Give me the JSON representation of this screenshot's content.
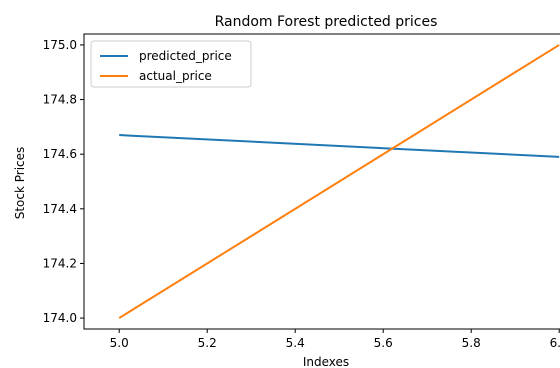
{
  "chart_data": {
    "type": "line",
    "title": "Random Forest predicted prices",
    "xlabel": "Indexes",
    "ylabel": "Stock Prices",
    "xlim": [
      4.92,
      6.02
    ],
    "ylim": [
      173.96,
      175.04
    ],
    "xticks": [
      5.0,
      5.2,
      5.4,
      5.6,
      5.8,
      6.0
    ],
    "xtick_labels": [
      "5.0",
      "5.2",
      "5.4",
      "5.6",
      "5.8",
      "6.0"
    ],
    "yticks": [
      174.0,
      174.2,
      174.4,
      174.6,
      174.8,
      175.0
    ],
    "ytick_labels": [
      "174.0",
      "174.2",
      "174.4",
      "174.6",
      "174.8",
      "175.0"
    ],
    "grid": false,
    "legend_position": "top-left",
    "series": [
      {
        "name": "predicted_price",
        "color": "#1f77b4",
        "x": [
          5,
          6
        ],
        "y": [
          174.67,
          174.59
        ]
      },
      {
        "name": "actual_price",
        "color": "#ff7f0e",
        "x": [
          5,
          6
        ],
        "y": [
          174.0,
          175.0
        ]
      }
    ]
  }
}
